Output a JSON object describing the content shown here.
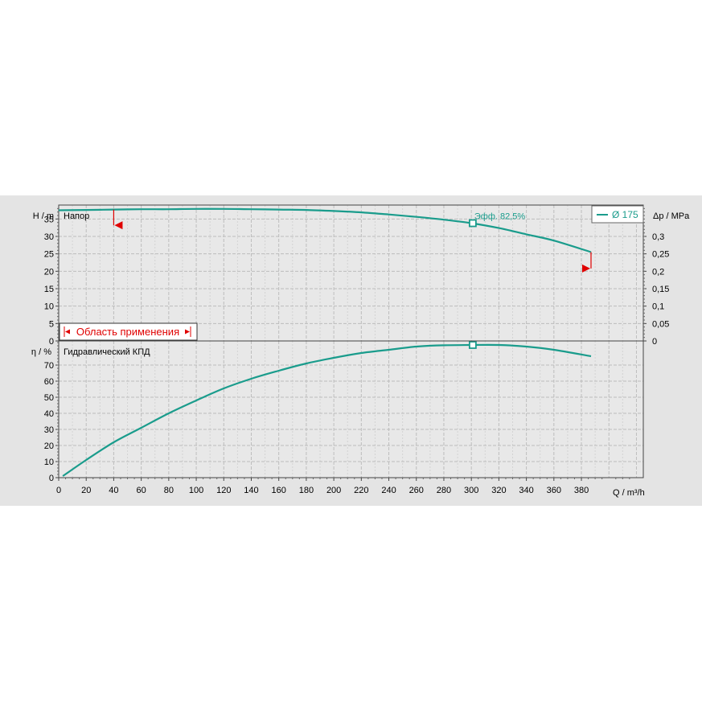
{
  "chart_data": [
    {
      "type": "line",
      "panel": "head",
      "title": "Напор",
      "xlabel": "Q / m³/h",
      "ylabel": "H / m",
      "ylabel_right": "Δp / MPa",
      "xlim": [
        0,
        425
      ],
      "ylim": [
        0,
        39
      ],
      "y2lim": [
        0,
        0.39
      ],
      "x_ticks": [
        "0",
        "20",
        "40",
        "60",
        "80",
        "100",
        "120",
        "140",
        "160",
        "180",
        "200",
        "220",
        "240",
        "260",
        "280",
        "300",
        "320",
        "340",
        "360",
        "380"
      ],
      "y_ticks": [
        "0",
        "5",
        "10",
        "15",
        "20",
        "25",
        "30",
        "35"
      ],
      "y2_ticks": [
        "0",
        "0,05",
        "0,1",
        "0,15",
        "0,2",
        "0,25",
        "0,3"
      ],
      "legend": [
        "Ø 175"
      ],
      "legend_position": "top-right",
      "grid": true,
      "series": [
        {
          "name": "Ø 175",
          "color": "#1a9c8c",
          "x": [
            0,
            20,
            40,
            60,
            80,
            100,
            120,
            140,
            160,
            180,
            200,
            220,
            240,
            260,
            280,
            300,
            320,
            340,
            360,
            387
          ],
          "y": [
            37.5,
            37.6,
            37.7,
            37.8,
            37.8,
            37.9,
            37.9,
            37.8,
            37.7,
            37.6,
            37.3,
            36.9,
            36.3,
            35.6,
            34.8,
            33.8,
            32.4,
            30.6,
            28.8,
            25.5
          ]
        }
      ],
      "operating_point": {
        "x": 301,
        "y": 33.8,
        "label": "Эфф. 82,5%"
      },
      "application_range": {
        "label": "Область применения",
        "start_x": 40,
        "end_x": 387,
        "marker_left_y": 33.2,
        "marker_right_y": 20.8
      }
    },
    {
      "type": "line",
      "panel": "efficiency",
      "title": "Гидравлический КПД",
      "xlabel": "Q / m³/h",
      "ylabel": "η / %",
      "xlim": [
        0,
        425
      ],
      "ylim": [
        0,
        85
      ],
      "x_ticks": [
        "0",
        "20",
        "40",
        "60",
        "80",
        "100",
        "120",
        "140",
        "160",
        "180",
        "200",
        "220",
        "240",
        "260",
        "280",
        "300",
        "320",
        "340",
        "360",
        "380"
      ],
      "y_ticks": [
        "0",
        "10",
        "20",
        "30",
        "40",
        "50",
        "60",
        "70"
      ],
      "grid": true,
      "series": [
        {
          "name": "Гидравлический КПД",
          "color": "#1a9c8c",
          "x": [
            3,
            20,
            40,
            60,
            80,
            100,
            120,
            140,
            160,
            180,
            200,
            220,
            240,
            260,
            280,
            301,
            320,
            340,
            360,
            387
          ],
          "y": [
            1,
            11,
            22,
            31,
            40,
            48,
            55.5,
            61.5,
            66.5,
            71,
            74.5,
            77.5,
            79.5,
            81.5,
            82.3,
            82.5,
            82.5,
            81.5,
            79.5,
            75.5
          ]
        }
      ],
      "operating_point": {
        "x": 301,
        "y": 82.5
      }
    }
  ]
}
